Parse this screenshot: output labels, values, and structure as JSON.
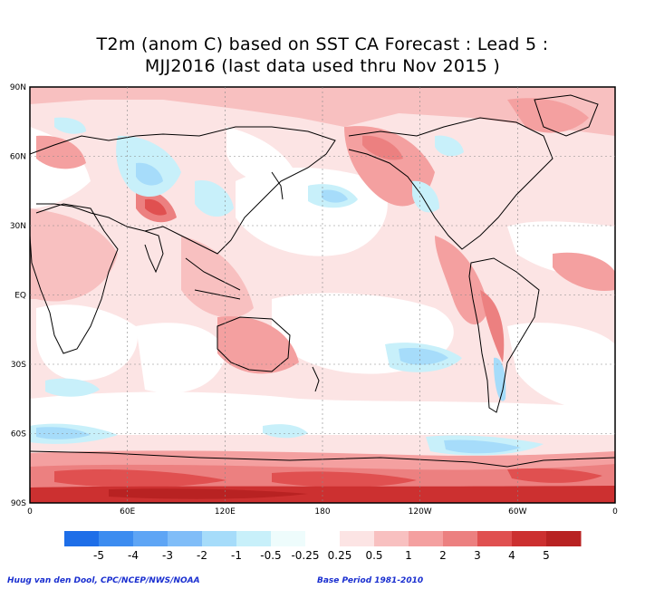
{
  "title": {
    "line1": "T2m (anom C) based on SST CA Forecast : Lead 5 :",
    "line2": "MJJ2016 (last data used thru Nov 2015 )"
  },
  "map": {
    "lat_labels": [
      "90N",
      "60N",
      "30N",
      "EQ",
      "30S",
      "60S",
      "90S"
    ],
    "lon_labels": [
      "0",
      "60E",
      "120E",
      "180",
      "120W",
      "60W",
      "0"
    ]
  },
  "legend": {
    "labels": [
      "-5",
      "-4",
      "-3",
      "-2",
      "-1",
      "-0.5",
      "-0.25",
      "0.25",
      "0.5",
      "1",
      "2",
      "3",
      "4",
      "5"
    ],
    "colors": [
      "#1e6ee8",
      "#3c8cf0",
      "#5ea5f5",
      "#80bdf8",
      "#a6dcfa",
      "#c8f0fa",
      "#eefcfc",
      "#ffffff",
      "#fce4e4",
      "#f8c0c0",
      "#f4a0a0",
      "#ec8080",
      "#e05050",
      "#cc3030",
      "#b82222"
    ]
  },
  "credits": {
    "left": "Huug van den Dool, CPC/NCEP/NWS/NOAA",
    "right": "Base Period 1981-2010"
  }
}
